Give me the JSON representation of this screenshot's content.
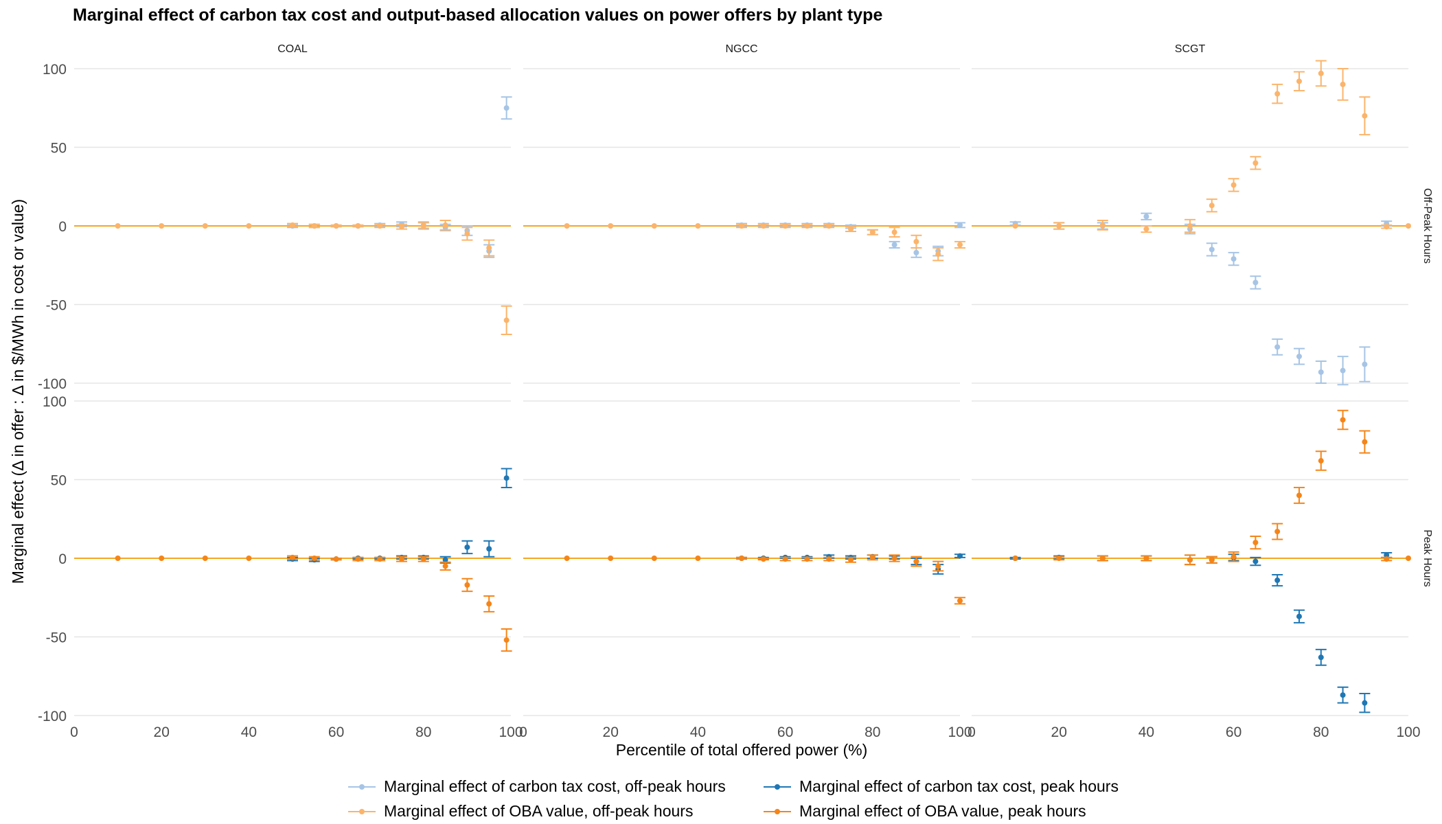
{
  "title": "Marginal effect of carbon tax cost and output-based allocation values on power offers by plant type",
  "xlabel": "Percentile of total offered power (%)",
  "ylabel": "Marginal effect (Δ in offer : Δ in $/MWh in cost or value)",
  "colors": {
    "ct_offpeak": "#a6c4e5",
    "oba_offpeak": "#fbb46b",
    "ct_peak": "#1f77b4",
    "oba_peak": "#f58518",
    "zero_line": "#f5a623",
    "grid": "#e5e5e5"
  },
  "legend": [
    {
      "key": "ct_offpeak",
      "label": "Marginal effect of carbon tax cost, off-peak hours"
    },
    {
      "key": "ct_peak",
      "label": "Marginal effect of carbon tax cost, peak hours"
    },
    {
      "key": "oba_offpeak",
      "label": "Marginal effect of OBA value, off-peak hours"
    },
    {
      "key": "oba_peak",
      "label": "Marginal effect of OBA value, peak hours"
    }
  ],
  "chart_data": {
    "type": "scatter",
    "facets_cols": [
      "COAL",
      "NGCC",
      "SCGT"
    ],
    "facets_rows": [
      "Off-Peak Hours",
      "Peak Hours"
    ],
    "xlim": [
      0,
      100
    ],
    "ylim": [
      -100,
      100
    ],
    "x_ticks": [
      0,
      20,
      40,
      60,
      80,
      100
    ],
    "y_ticks": [
      -100,
      -50,
      0,
      50,
      100
    ],
    "panels": [
      {
        "col": "COAL",
        "row": "Off-Peak Hours",
        "series": [
          {
            "key": "ct_offpeak",
            "points": [
              [
                50,
                0,
                1
              ],
              [
                55,
                0,
                1
              ],
              [
                60,
                0,
                0.5
              ],
              [
                65,
                0,
                0.5
              ],
              [
                70,
                0.5,
                1
              ],
              [
                75,
                1,
                1.5
              ],
              [
                80,
                0.5,
                2
              ],
              [
                85,
                -1,
                2
              ],
              [
                90,
                -3,
                3
              ],
              [
                95,
                -16,
                4
              ],
              [
                99,
                75,
                7
              ]
            ]
          },
          {
            "key": "oba_offpeak",
            "points": [
              [
                10,
                0,
                0
              ],
              [
                20,
                0,
                0
              ],
              [
                30,
                0,
                0
              ],
              [
                40,
                0,
                0
              ],
              [
                50,
                0.5,
                1
              ],
              [
                55,
                0,
                1
              ],
              [
                60,
                0,
                0.5
              ],
              [
                65,
                0,
                0.5
              ],
              [
                70,
                0,
                1
              ],
              [
                75,
                -0.5,
                1.5
              ],
              [
                80,
                0,
                2
              ],
              [
                85,
                0.5,
                3
              ],
              [
                90,
                -5,
                4
              ],
              [
                95,
                -14,
                5
              ],
              [
                99,
                -60,
                9
              ]
            ]
          }
        ]
      },
      {
        "col": "NGCC",
        "row": "Off-Peak Hours",
        "series": [
          {
            "key": "ct_offpeak",
            "points": [
              [
                50,
                0.5,
                1
              ],
              [
                55,
                0.5,
                1
              ],
              [
                60,
                0.5,
                1
              ],
              [
                65,
                0.5,
                1
              ],
              [
                70,
                0.5,
                1
              ],
              [
                75,
                -0.5,
                1
              ],
              [
                80,
                -4,
                1.5
              ],
              [
                85,
                -12,
                2
              ],
              [
                90,
                -17,
                3
              ],
              [
                95,
                -16,
                3
              ],
              [
                100,
                0.5,
                1.5
              ]
            ]
          },
          {
            "key": "oba_offpeak",
            "points": [
              [
                10,
                0,
                0
              ],
              [
                20,
                0,
                0
              ],
              [
                30,
                0,
                0
              ],
              [
                40,
                0,
                0
              ],
              [
                50,
                0,
                1
              ],
              [
                55,
                0,
                1
              ],
              [
                60,
                0,
                1
              ],
              [
                65,
                0,
                1
              ],
              [
                70,
                0,
                1
              ],
              [
                75,
                -2,
                1.5
              ],
              [
                80,
                -4,
                1.5
              ],
              [
                85,
                -4,
                3
              ],
              [
                90,
                -10,
                4
              ],
              [
                95,
                -18,
                4
              ],
              [
                100,
                -12,
                2
              ]
            ]
          }
        ]
      },
      {
        "col": "SCGT",
        "row": "Off-Peak Hours",
        "series": [
          {
            "key": "ct_offpeak",
            "points": [
              [
                10,
                1.5,
                1
              ],
              [
                20,
                0,
                2
              ],
              [
                30,
                0,
                2
              ],
              [
                40,
                6,
                2
              ],
              [
                50,
                -2,
                3
              ],
              [
                55,
                -15,
                4
              ],
              [
                60,
                -21,
                4
              ],
              [
                65,
                -36,
                4
              ],
              [
                70,
                -77,
                5
              ],
              [
                75,
                -83,
                5
              ],
              [
                80,
                -93,
                7
              ],
              [
                85,
                -92,
                9
              ],
              [
                90,
                -88,
                11
              ],
              [
                95,
                1.5,
                1.5
              ]
            ]
          },
          {
            "key": "oba_offpeak",
            "points": [
              [
                10,
                0,
                0
              ],
              [
                20,
                0,
                2
              ],
              [
                30,
                0.5,
                3
              ],
              [
                40,
                -2,
                2
              ],
              [
                50,
                0,
                4
              ],
              [
                55,
                13,
                4
              ],
              [
                60,
                26,
                4
              ],
              [
                65,
                40,
                4
              ],
              [
                70,
                84,
                6
              ],
              [
                75,
                92,
                6
              ],
              [
                80,
                97,
                8
              ],
              [
                85,
                90,
                10
              ],
              [
                90,
                70,
                12
              ],
              [
                95,
                -0.5,
                1
              ],
              [
                100,
                0,
                0
              ]
            ]
          }
        ]
      },
      {
        "col": "COAL",
        "row": "Peak Hours",
        "series": [
          {
            "key": "ct_peak",
            "points": [
              [
                50,
                -0.5,
                1
              ],
              [
                55,
                -1,
                1
              ],
              [
                60,
                -0.5,
                0.5
              ],
              [
                65,
                0,
                0.5
              ],
              [
                70,
                0,
                0.5
              ],
              [
                75,
                0.5,
                1
              ],
              [
                80,
                0.5,
                1
              ],
              [
                85,
                -1,
                2
              ],
              [
                90,
                7,
                4
              ],
              [
                95,
                6,
                5
              ],
              [
                99,
                51,
                6
              ]
            ]
          },
          {
            "key": "oba_peak",
            "points": [
              [
                10,
                0,
                0
              ],
              [
                20,
                0,
                0
              ],
              [
                30,
                0,
                0
              ],
              [
                40,
                0,
                0
              ],
              [
                50,
                0.5,
                1
              ],
              [
                55,
                0,
                1
              ],
              [
                60,
                -0.5,
                0.5
              ],
              [
                65,
                -0.5,
                1
              ],
              [
                70,
                -0.5,
                1
              ],
              [
                75,
                -0.5,
                1.5
              ],
              [
                80,
                -0.5,
                1.5
              ],
              [
                85,
                -5,
                2.5
              ],
              [
                90,
                -17,
                4
              ],
              [
                95,
                -29,
                5
              ],
              [
                99,
                -52,
                7
              ]
            ]
          }
        ]
      },
      {
        "col": "NGCC",
        "row": "Peak Hours",
        "series": [
          {
            "key": "ct_peak",
            "points": [
              [
                50,
                0,
                0.5
              ],
              [
                55,
                0,
                0.5
              ],
              [
                60,
                0.5,
                0.5
              ],
              [
                65,
                0.5,
                0.5
              ],
              [
                70,
                1,
                1
              ],
              [
                75,
                0.5,
                1
              ],
              [
                80,
                1,
                1
              ],
              [
                85,
                0.5,
                1
              ],
              [
                90,
                -2,
                2
              ],
              [
                95,
                -7,
                3
              ],
              [
                100,
                1.5,
                1
              ]
            ]
          },
          {
            "key": "oba_peak",
            "points": [
              [
                10,
                0,
                0
              ],
              [
                20,
                0,
                0
              ],
              [
                30,
                0,
                0
              ],
              [
                40,
                0,
                0
              ],
              [
                50,
                0,
                0.5
              ],
              [
                55,
                -0.5,
                0.5
              ],
              [
                60,
                -0.5,
                1
              ],
              [
                65,
                -0.5,
                1
              ],
              [
                70,
                -0.5,
                1
              ],
              [
                75,
                -1,
                1.5
              ],
              [
                80,
                0.5,
                1.5
              ],
              [
                85,
                0,
                2
              ],
              [
                90,
                -2,
                3
              ],
              [
                95,
                -5,
                3
              ],
              [
                100,
                -27,
                2
              ]
            ]
          }
        ]
      },
      {
        "col": "SCGT",
        "row": "Peak Hours",
        "series": [
          {
            "key": "ct_peak",
            "points": [
              [
                10,
                0,
                0.5
              ],
              [
                20,
                0.5,
                1
              ],
              [
                30,
                0,
                1.5
              ],
              [
                40,
                0,
                1.5
              ],
              [
                50,
                -1,
                3
              ],
              [
                55,
                -1,
                2
              ],
              [
                60,
                0.5,
                2
              ],
              [
                65,
                -2,
                2.5
              ],
              [
                70,
                -14,
                3.5
              ],
              [
                75,
                -37,
                4
              ],
              [
                80,
                -63,
                5
              ],
              [
                85,
                -87,
                5
              ],
              [
                90,
                -92,
                6
              ],
              [
                95,
                2,
                1.5
              ]
            ]
          },
          {
            "key": "oba_peak",
            "points": [
              [
                10,
                0,
                0
              ],
              [
                20,
                0,
                1
              ],
              [
                30,
                0,
                1.5
              ],
              [
                40,
                0,
                1.5
              ],
              [
                50,
                -1,
                3
              ],
              [
                55,
                -1,
                2
              ],
              [
                60,
                1,
                3
              ],
              [
                65,
                10,
                4
              ],
              [
                70,
                17,
                5
              ],
              [
                75,
                40,
                5
              ],
              [
                80,
                62,
                6
              ],
              [
                85,
                88,
                6
              ],
              [
                90,
                74,
                7
              ],
              [
                95,
                -0.5,
                1
              ],
              [
                100,
                0,
                0
              ]
            ]
          }
        ]
      }
    ]
  }
}
